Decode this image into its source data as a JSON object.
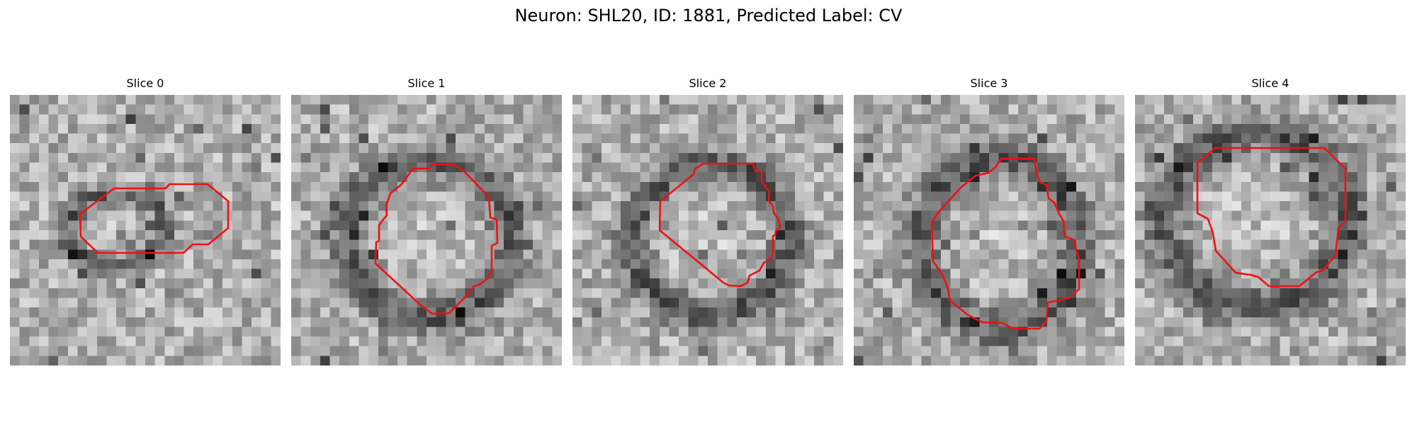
{
  "figure": {
    "title": "Neuron: SHL20, ID: 1881, Predicted Label: CV"
  },
  "panels": [
    {
      "title": "Slice 0"
    },
    {
      "title": "Slice 1"
    },
    {
      "title": "Slice 2"
    },
    {
      "title": "Slice 3"
    },
    {
      "title": "Slice 4"
    }
  ],
  "colors": {
    "contour": "#ee1111",
    "grayscale_range": [
      "#000000",
      "#ffffff"
    ]
  },
  "image_colormap": "gray"
}
